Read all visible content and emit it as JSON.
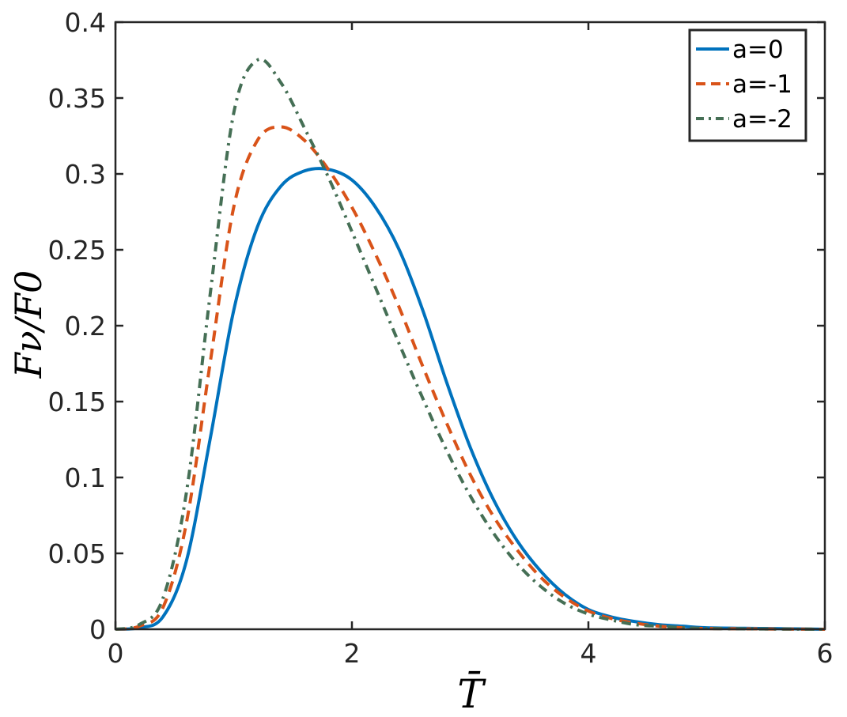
{
  "chart_data": {
    "type": "line",
    "xlim": [
      0,
      6
    ],
    "ylim": [
      0,
      0.4
    ],
    "x_ticks": [
      "0",
      "2",
      "4",
      "6"
    ],
    "y_ticks": [
      "0",
      "0.05",
      "0.1",
      "0.15",
      "0.2",
      "0.25",
      "0.3",
      "0.35",
      "0.4"
    ],
    "xlabel": "T̄",
    "ylabel": "Fν/F0",
    "grid": false,
    "legend_position": "top-right",
    "x": [
      0,
      0.2,
      0.4,
      0.6,
      0.8,
      1.0,
      1.2,
      1.4,
      1.6,
      1.8,
      2.0,
      2.2,
      2.4,
      2.6,
      2.8,
      3.0,
      3.2,
      3.4,
      3.6,
      3.8,
      4.0,
      4.2,
      4.4,
      4.6,
      4.8,
      5.0,
      5.5,
      6.0
    ],
    "series": [
      {
        "name": "a=0",
        "color": "#0072BD",
        "dash": "solid",
        "values": [
          0,
          0.001,
          0.008,
          0.045,
          0.125,
          0.21,
          0.265,
          0.292,
          0.302,
          0.303,
          0.296,
          0.278,
          0.25,
          0.21,
          0.163,
          0.12,
          0.085,
          0.058,
          0.038,
          0.023,
          0.013,
          0.008,
          0.005,
          0.003,
          0.002,
          0.001,
          0.0005,
          0
        ]
      },
      {
        "name": "a=-1",
        "color": "#D95319",
        "dash": "dashed",
        "values": [
          0,
          0.002,
          0.014,
          0.07,
          0.175,
          0.278,
          0.322,
          0.331,
          0.322,
          0.303,
          0.278,
          0.247,
          0.212,
          0.173,
          0.136,
          0.102,
          0.074,
          0.052,
          0.034,
          0.021,
          0.012,
          0.007,
          0.004,
          0.002,
          0.001,
          0.0005,
          0.0002,
          0
        ]
      },
      {
        "name": "a=-2",
        "color": "#456F55",
        "dash": "dashdot",
        "values": [
          0,
          0.003,
          0.02,
          0.09,
          0.22,
          0.34,
          0.375,
          0.36,
          0.33,
          0.298,
          0.262,
          0.225,
          0.188,
          0.152,
          0.118,
          0.088,
          0.063,
          0.043,
          0.028,
          0.017,
          0.01,
          0.006,
          0.003,
          0.002,
          0.001,
          0.0005,
          0.0002,
          0
        ]
      }
    ]
  }
}
